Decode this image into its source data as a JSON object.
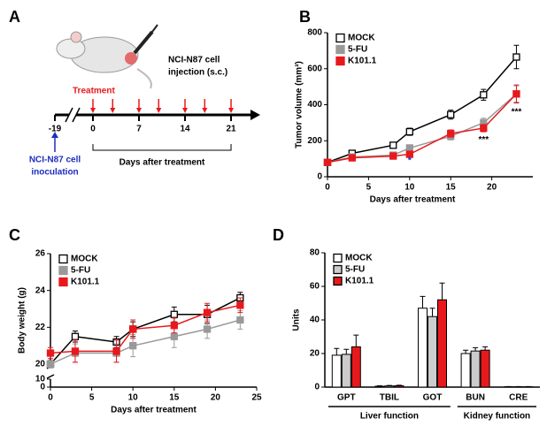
{
  "diagram": {
    "panel": "A",
    "treatment": "Treatment",
    "injection": [
      "NCI-N87 cell",
      "injection (s.c.)"
    ],
    "ticks": [
      -19,
      0,
      7,
      14,
      21
    ],
    "treatment_days": [
      0,
      3,
      7,
      10,
      14,
      17,
      21
    ],
    "inoculation": [
      "NCI-N87 cell",
      "inoculation"
    ],
    "xlabel": "Days after treatment"
  },
  "chart_data": [
    {
      "type": "line",
      "panel": "B",
      "xlabel": "Days after treatment",
      "ylabel": "Tumor volume (mm³)",
      "x": [
        0,
        3,
        8,
        10,
        15,
        19,
        23
      ],
      "xlim": [
        0,
        25
      ],
      "xticks": [
        0,
        5,
        10,
        15,
        20
      ],
      "ylim": [
        0,
        800
      ],
      "yticks": [
        0,
        200,
        400,
        600,
        800
      ],
      "series": [
        {
          "name": "MOCK",
          "color": "#000000",
          "fill": "#ffffff",
          "values": [
            80,
            130,
            175,
            250,
            345,
            455,
            665
          ],
          "errors": [
            5,
            10,
            10,
            20,
            25,
            30,
            65
          ]
        },
        {
          "name": "5-FU",
          "color": "#999999",
          "fill": "#999999",
          "values": [
            80,
            110,
            120,
            160,
            225,
            300,
            460
          ],
          "errors": [
            5,
            10,
            10,
            15,
            20,
            25,
            45
          ]
        },
        {
          "name": "K101.1",
          "color": "#e8191c",
          "fill": "#e8191c",
          "values": [
            80,
            105,
            115,
            125,
            240,
            270,
            460
          ],
          "errors": [
            5,
            10,
            10,
            10,
            20,
            20,
            50
          ]
        }
      ],
      "annotations": [
        {
          "text": "*",
          "x": 10,
          "y": 90,
          "color": "#1c2dbf"
        },
        {
          "text": "***",
          "x": 19,
          "y": 205,
          "color": "#000000"
        },
        {
          "text": "***",
          "x": 23,
          "y": 360,
          "color": "#000000"
        }
      ],
      "legend": "upper left"
    },
    {
      "type": "line",
      "panel": "C",
      "xlabel": "Days after treatment",
      "ylabel": "Body weight (g)",
      "x": [
        0,
        3,
        8,
        10,
        15,
        19,
        23
      ],
      "xlim": [
        0,
        25
      ],
      "xticks": [
        0,
        5,
        10,
        15,
        20,
        25
      ],
      "ylim": [
        0,
        26
      ],
      "ybreak": [
        10,
        20
      ],
      "yticks": [
        0,
        10,
        20,
        22,
        24,
        26
      ],
      "series": [
        {
          "name": "MOCK",
          "color": "#000000",
          "fill": "#ffffff",
          "values": [
            20.0,
            21.5,
            21.2,
            21.9,
            22.7,
            22.7,
            23.6
          ],
          "errors": [
            0.2,
            0.3,
            0.3,
            0.4,
            0.4,
            0.5,
            0.3
          ]
        },
        {
          "name": "5-FU",
          "color": "#999999",
          "fill": "#999999",
          "values": [
            20.0,
            20.6,
            20.6,
            21.0,
            21.5,
            21.9,
            22.4
          ],
          "errors": [
            0.2,
            0.5,
            0.5,
            0.6,
            0.6,
            0.5,
            0.5
          ]
        },
        {
          "name": "K101.1",
          "color": "#e8191c",
          "fill": "#e8191c",
          "values": [
            20.6,
            20.7,
            20.7,
            21.9,
            22.1,
            22.8,
            23.2
          ],
          "errors": [
            0.3,
            0.6,
            0.6,
            0.5,
            0.4,
            0.5,
            0.4
          ]
        }
      ],
      "legend": "upper left"
    },
    {
      "type": "bar",
      "panel": "D",
      "ylabel": "Units",
      "categories": [
        "GPT",
        "TBIL",
        "GOT",
        "BUN",
        "CRE"
      ],
      "ylim": [
        0,
        80
      ],
      "yticks": [
        0,
        20,
        40,
        60,
        80
      ],
      "groups": [
        {
          "label": "Liver function",
          "categories": [
            "GPT",
            "TBIL",
            "GOT"
          ]
        },
        {
          "label": "Kidney function",
          "categories": [
            "BUN",
            "CRE"
          ]
        }
      ],
      "series": [
        {
          "name": "MOCK",
          "color": "#000000",
          "fill": "#ffffff",
          "values": [
            19,
            0.5,
            47,
            20,
            0.2
          ],
          "errors": [
            4,
            0.3,
            7,
            2,
            0.1
          ]
        },
        {
          "name": "5-FU",
          "color": "#000000",
          "fill": "#cccccc",
          "values": [
            19.5,
            0.7,
            42,
            21.5,
            0.2
          ],
          "errors": [
            3,
            0.3,
            5,
            2,
            0.1
          ]
        },
        {
          "name": "K101.1",
          "color": "#000000",
          "fill": "#e8191c",
          "values": [
            24,
            0.8,
            52,
            22,
            0.2
          ],
          "errors": [
            7,
            0.3,
            10,
            2,
            0.1
          ]
        }
      ],
      "legend": "upper left"
    }
  ]
}
